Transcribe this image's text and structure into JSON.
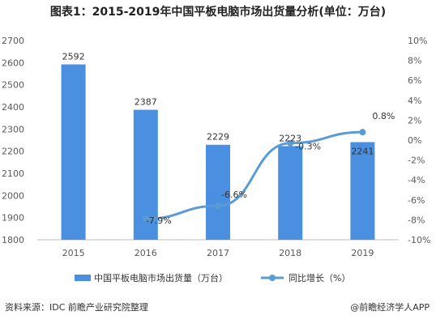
{
  "title": "图表1：2015-2019年中国平板电脑市场出货量分析(单位：万台)",
  "footer": {
    "source": "资料来源：IDC 前瞻产业研究院整理",
    "brand": "@前瞻经济学人APP"
  },
  "chart_data": {
    "type": "bar",
    "categories": [
      "2015",
      "2016",
      "2017",
      "2018",
      "2019"
    ],
    "series": [
      {
        "name": "中国平板电脑市场出货量（万台）",
        "type": "bar",
        "axis": "left",
        "values": [
          2592,
          2387,
          2229,
          2223,
          2241
        ],
        "labels": [
          "2592",
          "2387",
          "2229",
          "2223",
          "2241"
        ],
        "color": "#4a8fe0"
      },
      {
        "name": "同比增长（%）",
        "type": "line",
        "axis": "right",
        "x": [
          "2016",
          "2017",
          "2018",
          "2019"
        ],
        "values": [
          -7.9,
          -6.6,
          -0.3,
          0.8
        ],
        "labels": [
          "-7.9%",
          "-6.6%",
          "-0.3%",
          "0.8%"
        ],
        "color": "#5b9bd5"
      }
    ],
    "y_left": {
      "min": 1800,
      "max": 2700,
      "ticks": [
        "1800",
        "1900",
        "2000",
        "2100",
        "2200",
        "2300",
        "2400",
        "2500",
        "2600",
        "2700"
      ]
    },
    "y_right": {
      "min": -10,
      "max": 10,
      "ticks": [
        "-10%",
        "-8%",
        "-6%",
        "-4%",
        "-2%",
        "0%",
        "2%",
        "4%",
        "6%",
        "8%",
        "10%"
      ]
    },
    "grid": false,
    "legend": "bottom"
  }
}
